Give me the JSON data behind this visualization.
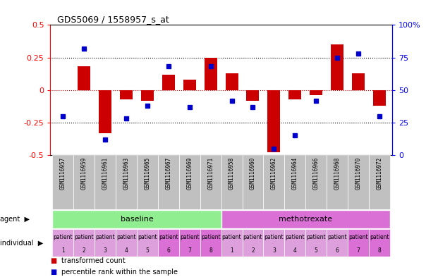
{
  "title": "GDS5069 / 1558957_s_at",
  "samples": [
    "GSM1116957",
    "GSM1116959",
    "GSM1116961",
    "GSM1116963",
    "GSM1116965",
    "GSM1116967",
    "GSM1116969",
    "GSM1116971",
    "GSM1116958",
    "GSM1116960",
    "GSM1116962",
    "GSM1116964",
    "GSM1116966",
    "GSM1116968",
    "GSM1116970",
    "GSM1116972"
  ],
  "transformed_count": [
    0.0,
    0.18,
    -0.33,
    -0.07,
    -0.08,
    0.12,
    0.08,
    0.25,
    0.13,
    -0.08,
    -0.48,
    -0.07,
    -0.04,
    0.35,
    0.13,
    -0.12
  ],
  "percentile_rank": [
    30,
    82,
    12,
    28,
    38,
    68,
    37,
    68,
    42,
    37,
    5,
    15,
    42,
    75,
    78,
    30
  ],
  "bar_color": "#cc0000",
  "dot_color": "#0000cc",
  "ylim_left": [
    -0.5,
    0.5
  ],
  "ylim_right": [
    0,
    100
  ],
  "yticks_left": [
    -0.5,
    -0.25,
    0.0,
    0.25,
    0.5
  ],
  "yticks_right": [
    0,
    25,
    50,
    75,
    100
  ],
  "hlines_dotted": [
    -0.25,
    0.25
  ],
  "hline_red_dotted": 0.0,
  "agent_groups": [
    {
      "label": "baseline",
      "start": 0,
      "end": 8,
      "color": "#90ee90"
    },
    {
      "label": "methotrexate",
      "start": 8,
      "end": 16,
      "color": "#da70d6"
    }
  ],
  "individual_labels": [
    "patient\n1",
    "patient\n2",
    "patient\n3",
    "patient\n4",
    "patient\n5",
    "patient\n6",
    "patient\n7",
    "patient\n8",
    "patient\n1",
    "patient\n2",
    "patient\n3",
    "patient\n4",
    "patient\n5",
    "patient\n6",
    "patient\n7",
    "patient\n8"
  ],
  "individual_colors": [
    "#dda0dd",
    "#dda0dd",
    "#dda0dd",
    "#dda0dd",
    "#dda0dd",
    "#da70d6",
    "#da70d6",
    "#da70d6",
    "#dda0dd",
    "#dda0dd",
    "#dda0dd",
    "#dda0dd",
    "#dda0dd",
    "#dda0dd",
    "#da70d6",
    "#da70d6"
  ],
  "bg_color": "#ffffff",
  "sample_label_row_color": "#c0c0c0",
  "legend_items": [
    {
      "color": "#cc0000",
      "label": "transformed count"
    },
    {
      "color": "#0000cc",
      "label": "percentile rank within the sample"
    }
  ]
}
